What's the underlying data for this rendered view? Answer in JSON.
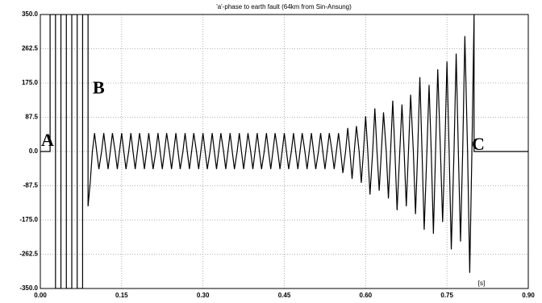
{
  "chart_data": {
    "type": "line",
    "title": "'a'-phase to earth fault (64km from Sin-Ansung)",
    "x_unit": "[s]",
    "annotations": [
      "A",
      "B",
      "C"
    ],
    "color": "#000000",
    "grid": true,
    "xlim": [
      0,
      0.9
    ],
    "ylim": [
      -350,
      350
    ],
    "xticks": [
      {
        "value": 0,
        "label": "0.00"
      },
      {
        "value": 0.15,
        "label": "0.15"
      },
      {
        "value": 0.3,
        "label": "0.30"
      },
      {
        "value": 0.45,
        "label": "0.45"
      },
      {
        "value": 0.6,
        "label": "0.60"
      },
      {
        "value": 0.75,
        "label": "0.75"
      },
      {
        "value": 0.9,
        "label": "0.90"
      }
    ],
    "yticks": [
      {
        "value": -350,
        "label": "-350.0"
      },
      {
        "value": -262.5,
        "label": "-262.5"
      },
      {
        "value": -175,
        "label": "-175.0"
      },
      {
        "value": -87.5,
        "label": "-87.5"
      },
      {
        "value": 0,
        "label": "0.0"
      },
      {
        "value": 87.5,
        "label": "87.5"
      },
      {
        "value": 175,
        "label": "175.0"
      },
      {
        "value": 262.5,
        "label": "262.5"
      },
      {
        "value": 350,
        "label": "350.0"
      }
    ],
    "x": [
      0,
      0.018,
      0.018,
      0.028,
      0.028,
      0.038,
      0.038,
      0.048,
      0.048,
      0.058,
      0.058,
      0.068,
      0.068,
      0.078,
      0.078,
      0.088,
      0.088,
      0.092,
      0.096,
      0.1,
      0.104,
      0.108,
      0.113,
      0.117,
      0.121,
      0.125,
      0.129,
      0.133,
      0.138,
      0.142,
      0.146,
      0.15,
      0.154,
      0.158,
      0.163,
      0.167,
      0.171,
      0.175,
      0.179,
      0.183,
      0.188,
      0.192,
      0.196,
      0.2,
      0.204,
      0.208,
      0.213,
      0.217,
      0.221,
      0.225,
      0.229,
      0.233,
      0.238,
      0.242,
      0.246,
      0.25,
      0.254,
      0.258,
      0.263,
      0.267,
      0.271,
      0.275,
      0.279,
      0.283,
      0.288,
      0.292,
      0.296,
      0.3,
      0.304,
      0.308,
      0.313,
      0.317,
      0.321,
      0.325,
      0.329,
      0.333,
      0.338,
      0.342,
      0.346,
      0.35,
      0.354,
      0.358,
      0.363,
      0.367,
      0.371,
      0.375,
      0.379,
      0.383,
      0.388,
      0.392,
      0.396,
      0.4,
      0.404,
      0.408,
      0.413,
      0.417,
      0.421,
      0.425,
      0.429,
      0.433,
      0.438,
      0.442,
      0.446,
      0.45,
      0.454,
      0.458,
      0.463,
      0.467,
      0.471,
      0.475,
      0.479,
      0.483,
      0.488,
      0.492,
      0.496,
      0.5,
      0.504,
      0.508,
      0.513,
      0.517,
      0.521,
      0.525,
      0.529,
      0.533,
      0.538,
      0.542,
      0.546,
      0.55,
      0.554,
      0.558,
      0.563,
      0.567,
      0.571,
      0.575,
      0.579,
      0.583,
      0.588,
      0.592,
      0.596,
      0.6,
      0.604,
      0.608,
      0.613,
      0.617,
      0.621,
      0.625,
      0.629,
      0.633,
      0.638,
      0.642,
      0.646,
      0.65,
      0.654,
      0.658,
      0.663,
      0.667,
      0.671,
      0.675,
      0.679,
      0.683,
      0.688,
      0.692,
      0.696,
      0.7,
      0.704,
      0.708,
      0.713,
      0.717,
      0.721,
      0.725,
      0.729,
      0.733,
      0.738,
      0.742,
      0.746,
      0.75,
      0.754,
      0.758,
      0.763,
      0.767,
      0.771,
      0.775,
      0.779,
      0.783,
      0.788,
      0.792,
      0.796,
      0.8,
      0.8,
      0.9
    ],
    "values": [
      0,
      0,
      350,
      350,
      -350,
      -350,
      350,
      350,
      -350,
      -350,
      350,
      350,
      -350,
      -350,
      350,
      350,
      -140,
      -80,
      0,
      47,
      0,
      -45,
      0,
      47,
      0,
      -45,
      0,
      47,
      0,
      -45,
      0,
      47,
      0,
      -45,
      0,
      47,
      0,
      -45,
      0,
      47,
      0,
      -45,
      0,
      47,
      0,
      -45,
      0,
      47,
      0,
      -45,
      0,
      47,
      0,
      -45,
      0,
      47,
      0,
      -45,
      0,
      47,
      0,
      -45,
      0,
      47,
      0,
      -45,
      0,
      47,
      0,
      -45,
      0,
      47,
      0,
      -45,
      0,
      47,
      0,
      -45,
      0,
      47,
      0,
      -45,
      0,
      47,
      0,
      -45,
      0,
      47,
      0,
      -45,
      0,
      47,
      0,
      -45,
      0,
      47,
      0,
      -45,
      0,
      47,
      0,
      -45,
      0,
      47,
      0,
      -45,
      0,
      47,
      0,
      -45,
      0,
      47,
      0,
      -45,
      0,
      47,
      0,
      -45,
      0,
      47,
      0,
      -45,
      0,
      47,
      0,
      -45,
      0,
      47,
      0,
      -55,
      0,
      60,
      0,
      -70,
      0,
      65,
      0,
      -80,
      0,
      90,
      0,
      -110,
      0,
      110,
      0,
      -100,
      0,
      100,
      0,
      -120,
      0,
      130,
      0,
      -150,
      0,
      120,
      0,
      -140,
      0,
      145,
      0,
      -160,
      0,
      190,
      0,
      -200,
      0,
      170,
      0,
      -210,
      0,
      210,
      0,
      -180,
      0,
      230,
      0,
      -250,
      0,
      250,
      0,
      -230,
      0,
      295,
      0,
      -310,
      0,
      350,
      0,
      0
    ]
  }
}
